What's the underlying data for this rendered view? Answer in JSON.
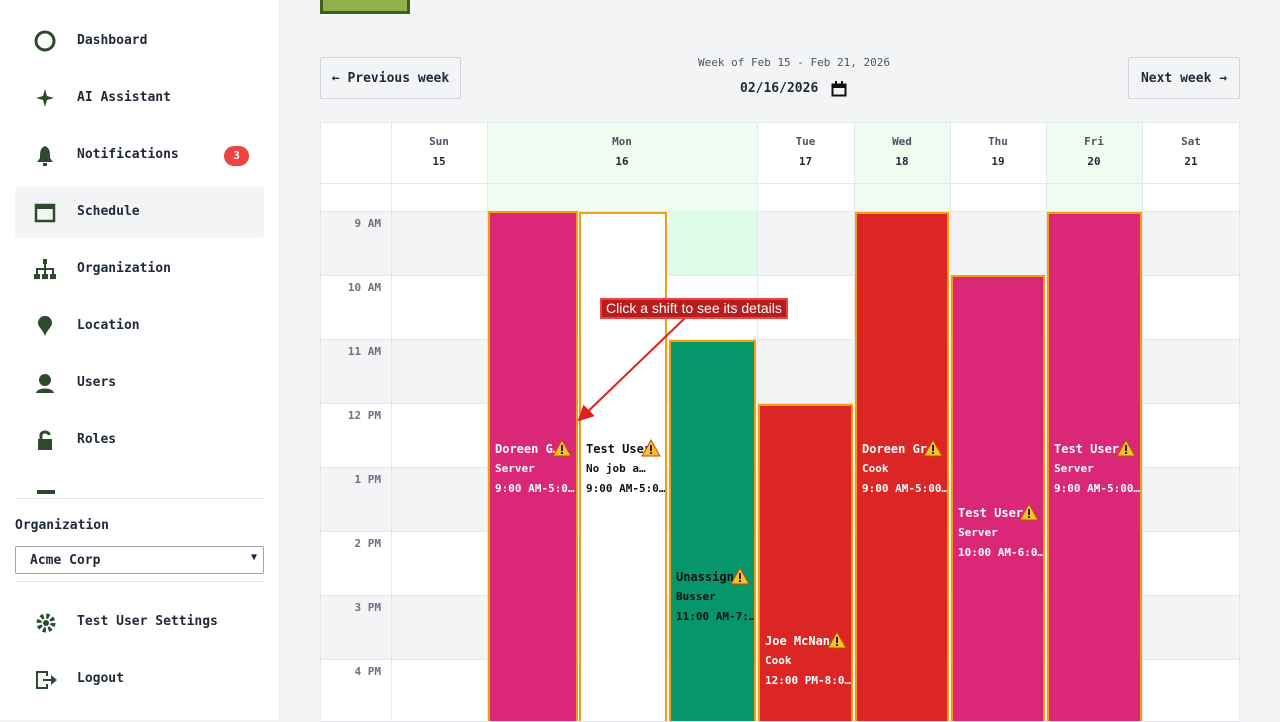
{
  "sidebar": {
    "nav": [
      {
        "label": "Dashboard"
      },
      {
        "label": "AI Assistant"
      },
      {
        "label": "Notifications",
        "badge": "3"
      },
      {
        "label": "Schedule"
      },
      {
        "label": "Organization"
      },
      {
        "label": "Location"
      },
      {
        "label": "Users"
      },
      {
        "label": "Roles"
      }
    ],
    "org_label": "Organization",
    "org_select": "Acme Corp",
    "footer": [
      {
        "label": "Test User Settings"
      },
      {
        "label": "Logout"
      }
    ]
  },
  "toolbar": {
    "prev": "← Previous week",
    "week": "Week of Feb 15 - Feb 21, 2026",
    "date": "02/16/2026",
    "next": "Next week →"
  },
  "calendar": {
    "days": [
      {
        "name": "Sun",
        "date": "15"
      },
      {
        "name": "Mon",
        "date": "16"
      },
      {
        "name": "Tue",
        "date": "17"
      },
      {
        "name": "Wed",
        "date": "18"
      },
      {
        "name": "Thu",
        "date": "19"
      },
      {
        "name": "Fri",
        "date": "20"
      },
      {
        "name": "Sat",
        "date": "21"
      }
    ],
    "hours": [
      "9 AM",
      "10 AM",
      "11 AM",
      "12 PM",
      "1 PM",
      "2 PM",
      "3 PM",
      "4 PM"
    ],
    "shifts": [
      {
        "name": "Doreen G…",
        "role": "Server",
        "time": "9:00 AM-5:0…"
      },
      {
        "name": "Test User",
        "role": "No job a…",
        "time": "9:00 AM-5:0…"
      },
      {
        "name": "Unassign…",
        "role": "Busser",
        "time": "11:00 AM-7:…"
      },
      {
        "name": "Joe McNan…",
        "role": "Cook",
        "time": "12:00 PM-8:0…"
      },
      {
        "name": "Doreen Gr…",
        "role": "Cook",
        "time": "9:00 AM-5:00…"
      },
      {
        "name": "Test User",
        "role": "Server",
        "time": "10:00 AM-6:0…"
      },
      {
        "name": "Test User",
        "role": "Server",
        "time": "9:00 AM-5:00…"
      }
    ]
  },
  "tooltip": "Click a shift to see its details"
}
